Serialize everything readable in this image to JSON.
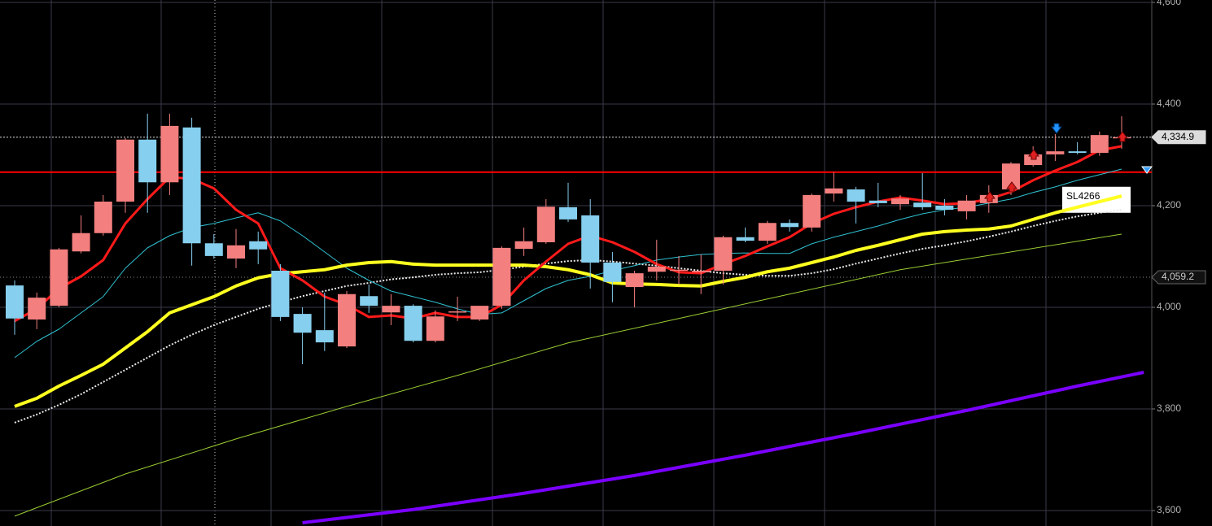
{
  "chart_data": {
    "type": "candlestick",
    "ylim": [
      3569.6,
      4604.8
    ],
    "yticks": [
      {
        "value": 4600,
        "label": "4,600"
      },
      {
        "value": 4400,
        "label": "4,400"
      },
      {
        "value": 4200,
        "label": "4,200"
      },
      {
        "value": 4000,
        "label": "4,000"
      },
      {
        "value": 3800,
        "label": "3,800"
      },
      {
        "value": 3600,
        "label": "3,600"
      }
    ],
    "grid": true,
    "up_color": "#f47f7f",
    "down_color": "#86cfee",
    "candles": {
      "open": [
        4043,
        3976,
        4003,
        4110,
        4146,
        4208,
        4330,
        4246,
        4354,
        4126,
        4096,
        4130,
        4072,
        3987,
        3955,
        3923,
        4022,
        3990,
        4003,
        3934,
        3992,
        3976,
        4003,
        4115,
        4128,
        4197,
        4181,
        4088,
        4040,
        4070,
        4074,
        4069,
        4072,
        4138,
        4131,
        4166,
        4157,
        4224,
        4232,
        4210,
        4203,
        4206,
        4200,
        4189,
        4205,
        4232,
        4280,
        4301,
        4307,
        4304,
        4333
      ],
      "high": [
        4053,
        4029,
        4117,
        4181,
        4221,
        4333,
        4381,
        4381,
        4373,
        4144,
        4154,
        4149,
        4085,
        4000,
        4029,
        4032,
        4045,
        4026,
        4006,
        3994,
        4021,
        4003,
        4120,
        4157,
        4213,
        4245,
        4213,
        4109,
        4072,
        4133,
        4101,
        4104,
        4141,
        4157,
        4170,
        4173,
        4224,
        4266,
        4237,
        4245,
        4221,
        4264,
        4213,
        4221,
        4240,
        4286,
        4317,
        4341,
        4325,
        4346,
        4376
      ],
      "low": [
        3946,
        3957,
        4000,
        4106,
        4141,
        4186,
        4186,
        4221,
        4082,
        4096,
        4077,
        4085,
        3973,
        3888,
        3914,
        3920,
        3989,
        3965,
        3931,
        3931,
        3973,
        3973,
        3997,
        4101,
        4125,
        4168,
        4037,
        4010,
        4000,
        4053,
        4045,
        4026,
        4045,
        4128,
        4125,
        4149,
        4149,
        4208,
        4165,
        4197,
        4192,
        4192,
        4181,
        4173,
        4186,
        4221,
        4277,
        4288,
        4301,
        4298,
        4312
      ],
      "close": [
        3978,
        4019,
        4114,
        4146,
        4208,
        4330,
        4246,
        4357,
        4126,
        4101,
        4122,
        4114,
        3981,
        3950,
        3931,
        4026,
        4003,
        4003,
        3934,
        3982,
        3992,
        4003,
        4117,
        4130,
        4198,
        4173,
        4088,
        4050,
        4067,
        4080,
        4074,
        4072,
        4138,
        4131,
        4166,
        4158,
        4221,
        4234,
        4208,
        4205,
        4214,
        4197,
        4192,
        4210,
        4221,
        4283,
        4301,
        4307,
        4304,
        4339,
        4334.9
      ]
    },
    "series": [
      {
        "color": "#e8e8e8",
        "style": "dotted",
        "width": 2,
        "values": [
          3773,
          3789,
          3808,
          3829,
          3853,
          3877,
          3901,
          3925,
          3946,
          3965,
          3981,
          3997,
          4010,
          4022,
          4032,
          4042,
          4048,
          4055,
          4059,
          4064,
          4067,
          4069,
          4074,
          4080,
          4086,
          4091,
          4093,
          4090,
          4086,
          4082,
          4077,
          4072,
          4067,
          4064,
          4062,
          4062,
          4067,
          4075,
          4086,
          4096,
          4106,
          4115,
          4122,
          4130,
          4139,
          4149,
          4160,
          4170,
          4179,
          4186,
          4192
        ]
      },
      {
        "color": "#9acd32",
        "width": 1,
        "x": [
          0,
          5,
          10,
          15,
          20,
          25,
          30,
          35,
          40,
          45,
          50
        ],
        "values": [
          3589,
          3672,
          3741,
          3805,
          3866,
          3930,
          3978,
          4026,
          4074,
          4109,
          4144
        ]
      },
      {
        "color": "#7a00ff",
        "width": 4,
        "x": [
          13,
          18,
          23,
          28,
          33,
          38,
          43,
          48,
          51
        ],
        "values": [
          3576,
          3602,
          3634,
          3669,
          3709,
          3752,
          3797,
          3845,
          3872
        ]
      },
      {
        "color": "#30c0d0",
        "width": 1,
        "values": [
          3901,
          3933,
          3957,
          3989,
          4021,
          4077,
          4117,
          4141,
          4157,
          4165,
          4176,
          4186,
          4170,
          4141,
          4109,
          4077,
          4053,
          4032,
          4021,
          4010,
          3997,
          3986,
          3989,
          4013,
          4037,
          4053,
          4061,
          4072,
          4082,
          4093,
          4099,
          4104,
          4106,
          4107,
          4106,
          4106,
          4125,
          4138,
          4149,
          4160,
          4173,
          4184,
          4192,
          4197,
          4205,
          4213,
          4226,
          4237,
          4250,
          4261,
          4272
        ]
      },
      {
        "color": "#ffff20",
        "width": 4,
        "values": [
          3805,
          3821,
          3845,
          3866,
          3888,
          3920,
          3952,
          3989,
          4005,
          4021,
          4042,
          4058,
          4066,
          4070,
          4074,
          4083,
          4088,
          4090,
          4085,
          4083,
          4083,
          4083,
          4083,
          4083,
          4080,
          4074,
          4064,
          4048,
          4046,
          4045,
          4043,
          4042,
          4051,
          4059,
          4070,
          4077,
          4088,
          4099,
          4112,
          4122,
          4133,
          4144,
          4149,
          4152,
          4154,
          4160,
          4173,
          4186,
          4197,
          4208,
          4219
        ]
      },
      {
        "color": "#ff1a1a",
        "width": 3,
        "values": [
          3973,
          3997,
          4037,
          4061,
          4093,
          4165,
          4213,
          4256,
          4253,
          4234,
          4192,
          4165,
          4077,
          4053,
          4021,
          4005,
          3981,
          3984,
          3978,
          3989,
          3981,
          3981,
          4005,
          4053,
          4090,
          4125,
          4141,
          4128,
          4109,
          4085,
          4069,
          4067,
          4085,
          4101,
          4120,
          4138,
          4165,
          4184,
          4197,
          4208,
          4216,
          4210,
          4203,
          4205,
          4213,
          4227,
          4250,
          4269,
          4286,
          4309,
          4317
        ]
      }
    ],
    "stop_loss": {
      "value": 4266,
      "label": "SL4266",
      "color": "#ff0000"
    },
    "price_labels": [
      {
        "value": 4334.9,
        "label": "4,334.9"
      },
      {
        "value": 4059.2,
        "label": "4,059.2"
      }
    ]
  }
}
